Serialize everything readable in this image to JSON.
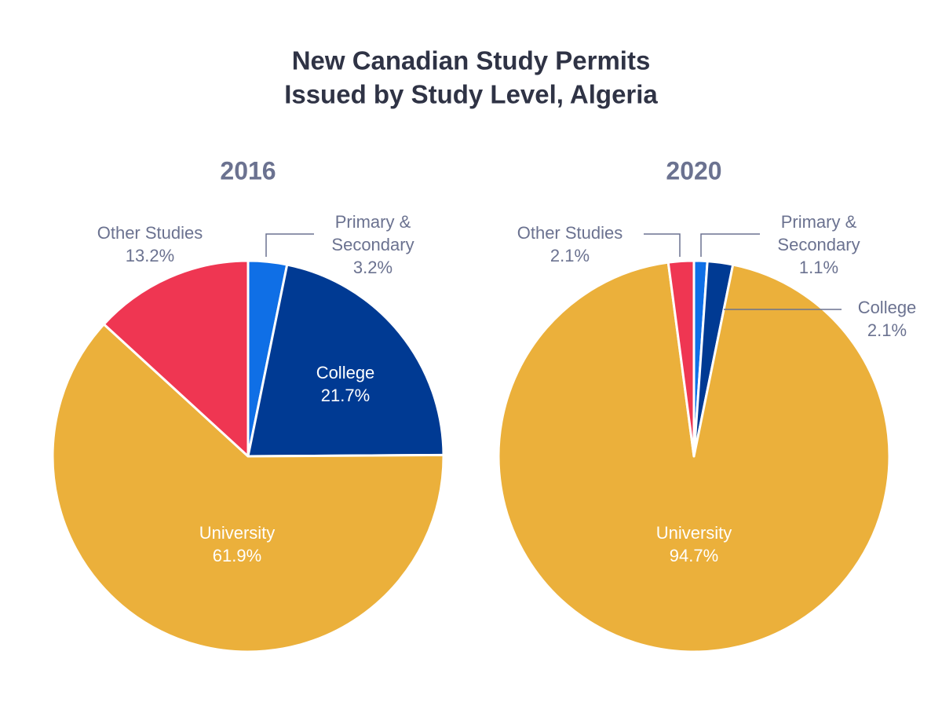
{
  "title": [
    "New Canadian Study Permits",
    "Issued by Study Level, Algeria"
  ],
  "chart_data": [
    {
      "type": "pie",
      "title": "2016",
      "categories": [
        "Primary & Secondary",
        "College",
        "University",
        "Other Studies"
      ],
      "values": [
        3.2,
        21.7,
        61.9,
        13.2
      ],
      "value_labels": [
        "3.2%",
        "21.7%",
        "61.9%",
        "13.2%"
      ],
      "colors": [
        "#0f6fe6",
        "#003a93",
        "#ebb03b",
        "#ef3652"
      ]
    },
    {
      "type": "pie",
      "title": "2020",
      "categories": [
        "Primary & Secondary",
        "College",
        "University",
        "Other Studies"
      ],
      "values": [
        1.1,
        2.1,
        94.7,
        2.1
      ],
      "value_labels": [
        "1.1%",
        "2.1%",
        "94.7%",
        "2.1%"
      ],
      "colors": [
        "#0f6fe6",
        "#003a93",
        "#ebb03b",
        "#ef3652"
      ]
    }
  ]
}
